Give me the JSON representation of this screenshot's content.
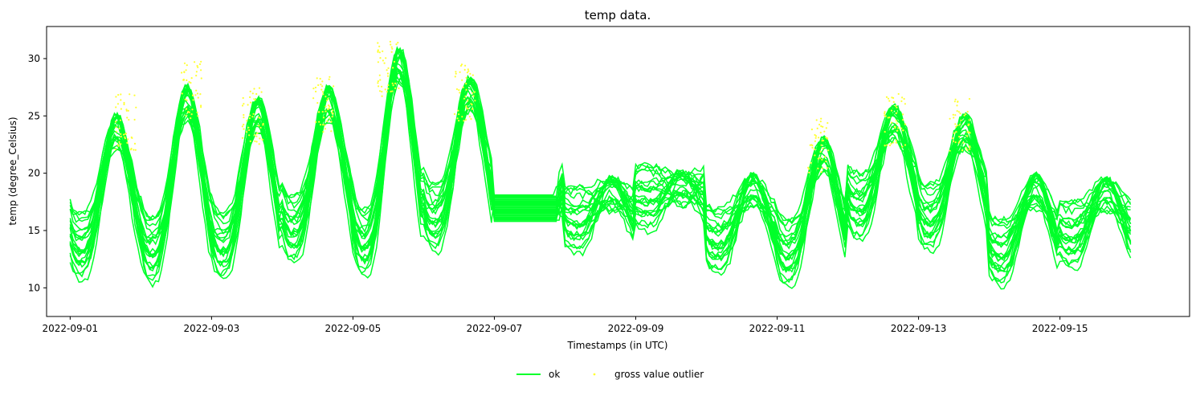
{
  "chart_data": {
    "type": "line",
    "title": "temp data.",
    "xlabel": "Timestamps (in UTC)",
    "ylabel": "temp (degree_Celsius)",
    "x_start": "2022-09-01",
    "x_end": "2022-09-16",
    "xlim": [
      "2022-08-31T16:00",
      "2022-09-16T20:00"
    ],
    "ylim": [
      7.5,
      32.8
    ],
    "x_ticks": [
      "2022-09-01",
      "2022-09-03",
      "2022-09-05",
      "2022-09-07",
      "2022-09-09",
      "2022-09-11",
      "2022-09-13",
      "2022-09-15"
    ],
    "y_ticks": [
      10,
      15,
      20,
      25,
      30
    ],
    "grid": false,
    "legend_position": "bottom-center",
    "legend": [
      {
        "name": "ok",
        "kind": "line",
        "color": "#00ff2a"
      },
      {
        "name": "gross value outlier",
        "kind": "marker",
        "color": "#ffff33"
      }
    ],
    "daily_peaks": [
      25.0,
      27.5,
      26.5,
      27.5,
      30.8,
      28.3,
      17.5,
      19.5,
      20.0,
      19.8,
      23.0,
      25.8,
      25.0,
      19.8,
      19.5
    ],
    "daily_mins": [
      10.5,
      10.2,
      10.5,
      12.0,
      10.8,
      13.0,
      16.0,
      12.8,
      14.8,
      11.0,
      10.0,
      14.0,
      13.0,
      10.0,
      11.5
    ],
    "gross_outlier_markers": [
      [
        2022,
        9,
        1,
        19,
        27.0
      ],
      [
        2022,
        9,
        2,
        17,
        29.8
      ],
      [
        2022,
        9,
        3,
        14,
        27.5
      ],
      [
        2022,
        9,
        4,
        14,
        28.5
      ],
      [
        2022,
        9,
        5,
        12,
        31.5
      ],
      [
        2022,
        9,
        6,
        14,
        29.5
      ],
      [
        2022,
        9,
        11,
        14,
        25.0
      ],
      [
        2022,
        9,
        12,
        16,
        27.0
      ],
      [
        2022,
        9,
        13,
        14,
        26.5
      ]
    ],
    "colors": {
      "ok": "#00ff2a",
      "outlier": "#ffff33"
    }
  }
}
